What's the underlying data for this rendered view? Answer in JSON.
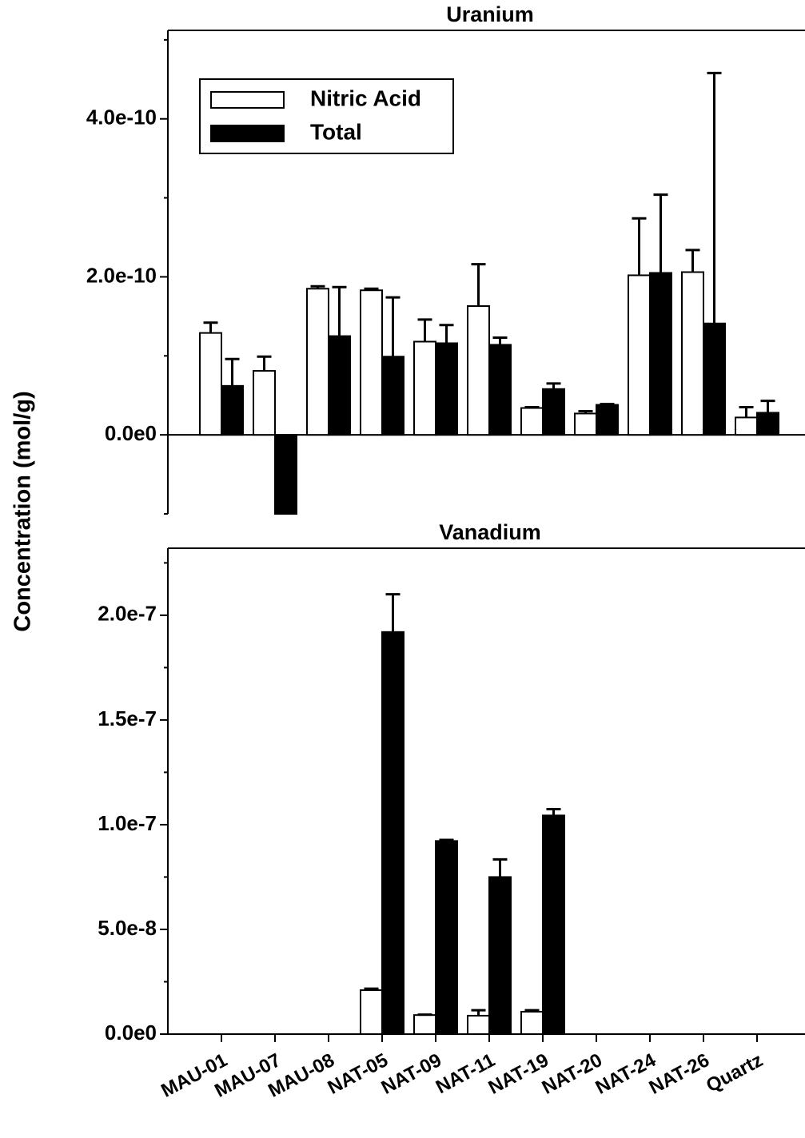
{
  "chart_data": [
    {
      "type": "bar",
      "title": "Uranium",
      "ylabel": "Concentration (mol/g)",
      "legend": "upper left",
      "ylim": [
        -1e-10,
        5.12e-10
      ],
      "yticks": [
        {
          "value": 0,
          "label": "0.0e0"
        },
        {
          "value": 2e-10,
          "label": "2.0e-10"
        },
        {
          "value": 4e-10,
          "label": "4.0e-10"
        }
      ],
      "yminorticks": [
        -1e-10,
        1e-10,
        3e-10,
        5e-10
      ],
      "series": [
        {
          "name": "Nitric Acid",
          "color": "#ffffff",
          "values": [
            1.29e-10,
            8.1e-11,
            1.85e-10,
            1.83e-10,
            1.18e-10,
            1.63e-10,
            3.4e-11,
            2.7e-11,
            2.02e-10,
            2.06e-10,
            2.2e-11
          ],
          "errors": [
            1.3e-11,
            1.8e-11,
            3e-12,
            2e-12,
            2.8e-11,
            5.3e-11,
            1e-12,
            3e-12,
            7.2e-11,
            2.8e-11,
            1.3e-11
          ]
        },
        {
          "name": "Total",
          "color": "#000000",
          "values": [
            6.2e-11,
            -1e-10,
            1.25e-10,
            9.9e-11,
            1.16e-10,
            1.14e-10,
            5.8e-11,
            3.8e-11,
            2.05e-10,
            1.41e-10,
            2.8e-11
          ],
          "errors": [
            3.4e-11,
            null,
            6.2e-11,
            7.5e-11,
            2.3e-11,
            9e-12,
            7e-12,
            1e-12,
            9.9e-11,
            3.17e-10,
            1.5e-11
          ]
        }
      ]
    },
    {
      "type": "bar",
      "title": "Vanadium",
      "categories": [
        "MAU-01",
        "MAU-07",
        "MAU-08",
        "NAT-05",
        "NAT-09",
        "NAT-11",
        "NAT-19",
        "NAT-20",
        "NAT-24",
        "NAT-26",
        "Quartz"
      ],
      "ylim": [
        0,
        2.32e-07
      ],
      "yticks": [
        {
          "value": 0,
          "label": "0.0e0"
        },
        {
          "value": 5e-08,
          "label": "5.0e-8"
        },
        {
          "value": 1e-07,
          "label": "1.0e-7"
        },
        {
          "value": 1.5e-07,
          "label": "1.5e-7"
        },
        {
          "value": 2e-07,
          "label": "2.0e-7"
        }
      ],
      "yminorticks": [
        2.5e-08,
        7.5e-08,
        1.25e-07,
        1.75e-07,
        2.25e-07
      ],
      "series": [
        {
          "color": "#ffffff",
          "values": [
            null,
            null,
            null,
            2.1e-08,
            9.1e-09,
            8.8e-09,
            1.07e-08,
            null,
            null,
            null,
            null
          ],
          "errors": [
            null,
            null,
            null,
            7e-10,
            2e-10,
            2.6e-09,
            7e-10,
            null,
            null,
            null,
            null
          ]
        },
        {
          "color": "#000000",
          "values": [
            null,
            null,
            null,
            1.92e-07,
            9.22e-08,
            7.5e-08,
            1.044e-07,
            null,
            null,
            null,
            null
          ],
          "errors": [
            null,
            null,
            null,
            1.8e-08,
            5e-10,
            8.4e-09,
            3e-09,
            null,
            null,
            null,
            null
          ]
        }
      ]
    }
  ]
}
